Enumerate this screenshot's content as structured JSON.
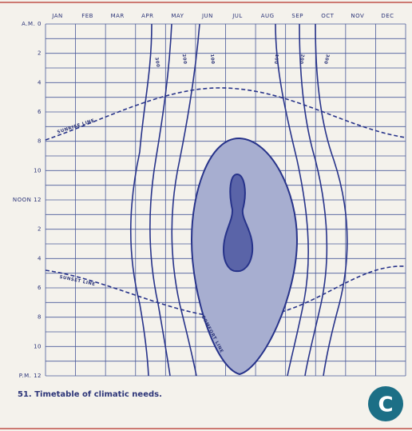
{
  "months": [
    "JAN",
    "FEB",
    "MAR",
    "APR",
    "MAY",
    "JUN",
    "JUL",
    "AUG",
    "SEP",
    "OCT",
    "NOV",
    "DEC"
  ],
  "hour_labels": [
    "A.M. 0",
    "2",
    "4",
    "6",
    "8",
    "10",
    "NOON 12",
    "2",
    "4",
    "6",
    "8",
    "10",
    "P.M. 12"
  ],
  "contour_labels": [
    "300",
    "200",
    "100",
    "100",
    "200",
    "300"
  ],
  "sunrise_label": "SUNRISE LINE",
  "sunset_label": "SUNSET LINE",
  "comfort_label": "COMFORT LINE",
  "caption": "51. Timetable of climatic needs.",
  "badge": "C"
}
